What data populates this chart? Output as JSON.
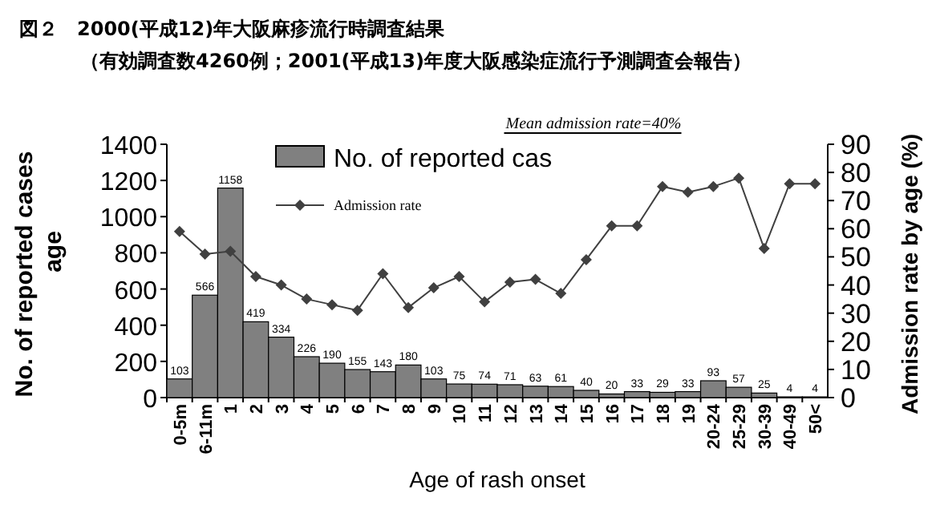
{
  "chart_data": {
    "type": "bar",
    "title": "図２　2000(平成12)年大阪麻疹流行時調査結果",
    "subtitle": "（有効調査数4260例；2001(平成13)年度大阪感染症流行予測調査会報告）",
    "xlabel": "Age of rash onset",
    "ylabel": "No. of reported cases age",
    "y2label": "Admission rate by age (%)",
    "annotations": [
      "Mean admission rate=40%"
    ],
    "categories": [
      "0-5m",
      "6-11m",
      "1",
      "2",
      "3",
      "4",
      "5",
      "6",
      "7",
      "8",
      "9",
      "10",
      "11",
      "12",
      "13",
      "14",
      "15",
      "16",
      "17",
      "18",
      "19",
      "20-24",
      "25-29",
      "30-39",
      "40-49",
      "50<"
    ],
    "ylim": [
      0,
      1400
    ],
    "yticks": [
      0,
      200,
      400,
      600,
      800,
      1000,
      1200,
      1400
    ],
    "y2lim": [
      0,
      90
    ],
    "y2ticks": [
      0,
      10,
      20,
      30,
      40,
      50,
      60,
      70,
      80,
      90
    ],
    "legend": "top",
    "series": [
      {
        "name": "No. of reported cas",
        "color": "#808080",
        "values": [
          103,
          566,
          1158,
          419,
          334,
          226,
          190,
          155,
          143,
          180,
          103,
          75,
          74,
          71,
          63,
          61,
          40,
          20,
          33,
          29,
          33,
          93,
          57,
          25,
          4,
          4
        ],
        "value_labels": [
          "103",
          "566",
          "1158",
          "419",
          "334",
          "226",
          "190",
          "155",
          "143",
          "180",
          "103",
          "75",
          "74",
          "71",
          "63",
          "61",
          "40",
          "20",
          "33",
          "29",
          "33",
          "93",
          "57",
          "25",
          "4",
          "4"
        ]
      },
      {
        "name": "Admission rate",
        "type": "line",
        "axis": "y2",
        "color": "#404040",
        "marker": "diamond",
        "values": [
          59,
          51,
          52,
          43,
          40,
          35,
          33,
          31,
          44,
          32,
          39,
          43,
          34,
          41,
          42,
          37,
          49,
          61,
          61,
          75,
          73,
          75,
          78,
          53,
          76,
          76
        ]
      }
    ]
  }
}
